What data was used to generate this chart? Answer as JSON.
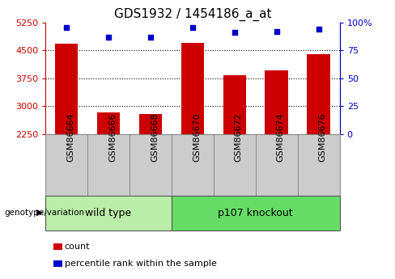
{
  "title": "GDS1932 / 1454186_a_at",
  "samples": [
    "GSM86664",
    "GSM86666",
    "GSM86668",
    "GSM86670",
    "GSM86672",
    "GSM86674",
    "GSM86676"
  ],
  "counts": [
    4680,
    2820,
    2780,
    4700,
    3820,
    3960,
    4390
  ],
  "percentiles": [
    95,
    87,
    87,
    95,
    91,
    92,
    94
  ],
  "ymin": 2250,
  "ymax": 5250,
  "yticks": [
    2250,
    3000,
    3750,
    4500,
    5250
  ],
  "right_yticks": [
    0,
    25,
    50,
    75,
    100
  ],
  "right_ytick_labels": [
    "0",
    "25",
    "50",
    "75",
    "100%"
  ],
  "groups": [
    {
      "label": "wild type",
      "count": 3,
      "color": "#bbeeaa"
    },
    {
      "label": "p107 knockout",
      "count": 4,
      "color": "#66dd66"
    }
  ],
  "bar_color": "#cc0000",
  "dot_color": "#0000cc",
  "bar_width": 0.55,
  "left_axis_color": "#cc0000",
  "right_axis_color": "#0000cc",
  "title_fontsize": 11,
  "tick_fontsize": 8,
  "label_fontsize": 8,
  "group_label_fontsize": 9,
  "legend_fontsize": 8,
  "sample_box_color": "#cccccc",
  "sample_box_edge": "#888888",
  "genotype_label": "genotype/variation",
  "legend_count": "count",
  "legend_percentile": "percentile rank within the sample"
}
